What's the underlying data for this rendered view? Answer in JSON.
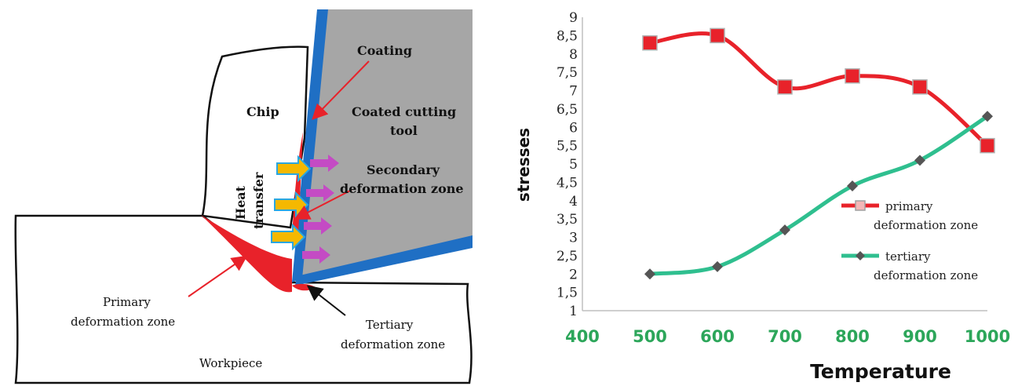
{
  "diagram": {
    "labels": {
      "coating": "Coating",
      "chip": "Chip",
      "coated_tool_1": "Coated cutting",
      "coated_tool_2": "tool",
      "heat_1": "Heat",
      "heat_2": "transfer",
      "secondary_1": "Secondary",
      "secondary_2": "deformation zone",
      "primary_1": "Primary",
      "primary_2": "deformation zone",
      "tertiary_1": "Tertiary",
      "tertiary_2": "deformation zone",
      "workpiece": "Workpiece"
    },
    "colors": {
      "tool": "#a6a6a6",
      "coating": "#1f6fc4",
      "deformation": "#e8222a",
      "heat_arrow": "#f5b800",
      "heat_arrow_outline": "#2aa7e0",
      "purple_arrow": "#c44bc4"
    }
  },
  "chart_data": {
    "type": "line",
    "x": [
      500,
      600,
      700,
      800,
      900,
      1000
    ],
    "xlim": [
      400,
      1000
    ],
    "ylim": [
      1,
      9
    ],
    "x_ticks": [
      "400",
      "500",
      "600",
      "700",
      "800",
      "900",
      "1000"
    ],
    "y_ticks": [
      "1",
      "1,5",
      "2",
      "2,5",
      "3",
      "3,5",
      "4",
      "4,5",
      "5",
      "5,5",
      "6",
      "6,5",
      "7",
      "7,5",
      "8",
      "8,5",
      "9"
    ],
    "xlabel": "Temperature",
    "ylabel": "stresses",
    "legend_position": "right",
    "grid": false,
    "smooth": true,
    "series": [
      {
        "name": "primary deformation zone",
        "legend_lines": [
          "primary",
          "deformation zone"
        ],
        "values": [
          8.3,
          8.5,
          7.1,
          7.4,
          7.1,
          5.5
        ],
        "color": "#e8222a",
        "marker": "square",
        "marker_color": "#e8222a"
      },
      {
        "name": "tertiary deformation zone",
        "legend_lines": [
          "tertiary",
          "deformation zone"
        ],
        "values": [
          2.0,
          2.2,
          3.2,
          4.4,
          5.1,
          6.3
        ],
        "color": "#2fbf8f",
        "marker": "diamond",
        "marker_color": "#555555"
      }
    ],
    "tick_colors": {
      "x": "#2ca65a",
      "y": "#222222"
    }
  }
}
